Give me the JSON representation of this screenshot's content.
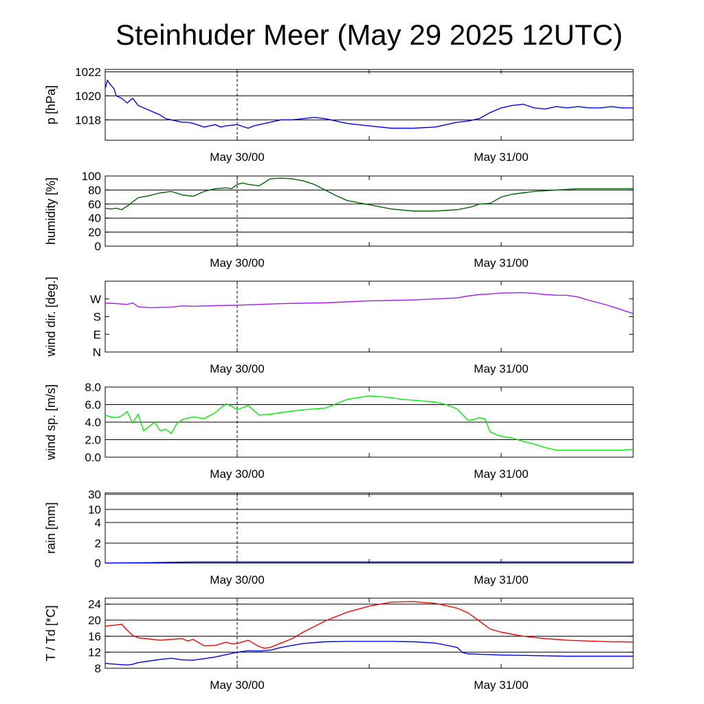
{
  "title": "Steinhuder Meer (May 29 2025 12UTC)",
  "x_tick_labels": [
    "May 30/00",
    "May 31/00"
  ],
  "chart_data": [
    {
      "id": "pressure",
      "type": "line",
      "ylabel": "p [hPa]",
      "ticks": [
        {
          "v": 1018,
          "label": "1018"
        },
        {
          "v": 1020,
          "label": "1020"
        },
        {
          "v": 1022,
          "label": "1022"
        }
      ],
      "ylim": [
        1016.3,
        1022.2
      ],
      "grid_values": [
        1018,
        1020,
        1022
      ],
      "series": [
        {
          "color": "#0000ff",
          "x": [
            12.0,
            12.2,
            12.5,
            12.8,
            13.0,
            13.5,
            14.0,
            14.5,
            15.0,
            15.5,
            16.0,
            16.5,
            17.0,
            17.5,
            18.0,
            18.5,
            19.0,
            19.5,
            20.0,
            21.0,
            22.0,
            22.5,
            23.0,
            24.0,
            25.0,
            25.5,
            26.0,
            27.0,
            28.0,
            29.0,
            30.0,
            31.0,
            32.0,
            33.0,
            34.0,
            36.0,
            38.0,
            40.0,
            42.0,
            44.0,
            45.0,
            46.0,
            47.0,
            48.0,
            49.0,
            50.0,
            51.0,
            52.0,
            53.0,
            54.0,
            55.0,
            56.0,
            57.0,
            58.0,
            59.0,
            60.0
          ],
          "y": [
            1020.6,
            1021.3,
            1020.9,
            1020.6,
            1020.0,
            1019.8,
            1019.4,
            1019.8,
            1019.2,
            1019.0,
            1018.8,
            1018.6,
            1018.4,
            1018.1,
            1018.0,
            1017.9,
            1017.8,
            1017.8,
            1017.7,
            1017.4,
            1017.6,
            1017.4,
            1017.5,
            1017.6,
            1017.3,
            1017.5,
            1017.6,
            1017.8,
            1018.0,
            1018.0,
            1018.1,
            1018.2,
            1018.1,
            1017.9,
            1017.7,
            1017.5,
            1017.3,
            1017.3,
            1017.4,
            1017.8,
            1017.9,
            1018.1,
            1018.6,
            1019.0,
            1019.2,
            1019.3,
            1019.0,
            1018.9,
            1019.1,
            1019.0,
            1019.1,
            1019.0,
            1019.0,
            1019.1,
            1019.0,
            1019.0
          ]
        }
      ]
    },
    {
      "id": "humidity",
      "type": "line",
      "ylabel": "humidity [%]",
      "ticks": [
        {
          "v": 0,
          "label": "0"
        },
        {
          "v": 20,
          "label": "20"
        },
        {
          "v": 40,
          "label": "40"
        },
        {
          "v": 60,
          "label": "60"
        },
        {
          "v": 80,
          "label": "80"
        },
        {
          "v": 100,
          "label": "100"
        }
      ],
      "ylim": [
        0,
        100
      ],
      "grid_values": [
        20,
        40,
        60,
        80
      ],
      "series": [
        {
          "color": "#006400",
          "x": [
            12.0,
            12.5,
            13.0,
            13.5,
            14.0,
            14.5,
            15.0,
            16.0,
            17.0,
            18.0,
            19.0,
            20.0,
            21.0,
            22.0,
            23.0,
            23.5,
            24.0,
            24.5,
            25.0,
            26.0,
            27.0,
            28.0,
            29.0,
            30.0,
            31.0,
            32.0,
            33.0,
            34.0,
            36.0,
            38.0,
            40.0,
            42.0,
            44.0,
            45.0,
            45.5,
            46.0,
            47.0,
            48.0,
            49.0,
            50.0,
            51.0,
            52.0,
            53.0,
            54.0,
            55.0,
            56.0,
            57.0,
            58.0,
            59.0,
            60.0
          ],
          "y": [
            54,
            53,
            54,
            52,
            57,
            63,
            69,
            72,
            76,
            78,
            73,
            71,
            78,
            82,
            83,
            82,
            88,
            90,
            88,
            86,
            96,
            97,
            96,
            93,
            88,
            80,
            72,
            65,
            59,
            53,
            50,
            50,
            52,
            55,
            57,
            60,
            61,
            70,
            74,
            76,
            78,
            79,
            80,
            81,
            82,
            82,
            82,
            82,
            82,
            82
          ]
        }
      ]
    },
    {
      "id": "wind_dir",
      "type": "line",
      "ylabel": "wind dir. [deg.]",
      "ticks": [
        {
          "v": 0,
          "label": "N"
        },
        {
          "v": 90,
          "label": "E"
        },
        {
          "v": 180,
          "label": "S"
        },
        {
          "v": 270,
          "label": "W"
        }
      ],
      "ylim": [
        0,
        360
      ],
      "grid_values": [],
      "series": [
        {
          "color": "#a020f0",
          "x": [
            12.0,
            12.5,
            13.0,
            14.0,
            14.5,
            15.0,
            16.0,
            18.0,
            19.0,
            20.0,
            22.0,
            24.0,
            26.0,
            28.0,
            30.0,
            32.0,
            34.0,
            36.0,
            38.0,
            40.0,
            42.0,
            44.0,
            45.0,
            46.0,
            47.0,
            48.0,
            49.0,
            50.0,
            51.0,
            52.0,
            53.0,
            54.0,
            55.0,
            56.0,
            57.0,
            58.0,
            59.0,
            60.0
          ],
          "y": [
            248,
            248,
            246,
            242,
            250,
            230,
            225,
            228,
            235,
            232,
            236,
            238,
            242,
            246,
            248,
            250,
            255,
            260,
            262,
            265,
            270,
            275,
            285,
            292,
            295,
            300,
            301,
            302,
            298,
            292,
            289,
            288,
            280,
            262,
            248,
            232,
            214,
            195
          ]
        }
      ]
    },
    {
      "id": "wind_speed",
      "type": "line",
      "ylabel": "wind sp. [m/s]",
      "ticks": [
        {
          "v": 0,
          "label": "0.0"
        },
        {
          "v": 2,
          "label": "2.0"
        },
        {
          "v": 4,
          "label": "4.0"
        },
        {
          "v": 6,
          "label": "6.0"
        },
        {
          "v": 8,
          "label": "8.0"
        }
      ],
      "ylim": [
        0,
        8
      ],
      "grid_values": [
        2,
        4,
        6
      ],
      "series": [
        {
          "color": "#00ee00",
          "x": [
            12.0,
            12.5,
            13.0,
            13.5,
            14.0,
            14.5,
            15.0,
            15.5,
            16.0,
            16.5,
            17.0,
            17.5,
            18.0,
            18.5,
            19.0,
            20.0,
            21.0,
            22.0,
            23.0,
            23.5,
            24.0,
            25.0,
            26.0,
            27.0,
            28.0,
            30.0,
            32.0,
            34.0,
            36.0,
            38.0,
            39.0,
            40.0,
            41.0,
            42.0,
            43.0,
            44.0,
            45.0,
            45.5,
            46.0,
            46.5,
            47.0,
            47.5,
            48.0,
            49.0,
            50.0,
            51.0,
            52.0,
            53.0,
            54.0,
            55.0,
            56.0,
            57.0,
            58.0,
            59.0,
            60.0
          ],
          "y": [
            4.8,
            4.6,
            4.5,
            4.7,
            5.2,
            3.9,
            4.9,
            3.0,
            3.5,
            4.0,
            3.0,
            3.2,
            2.7,
            3.8,
            4.3,
            4.6,
            4.4,
            5.1,
            6.1,
            5.8,
            5.4,
            5.9,
            4.8,
            4.9,
            5.1,
            5.4,
            5.6,
            6.6,
            7.0,
            6.8,
            6.6,
            6.5,
            6.4,
            6.3,
            6.0,
            5.5,
            4.2,
            4.3,
            4.5,
            4.4,
            2.9,
            2.6,
            2.4,
            2.2,
            1.8,
            1.5,
            1.1,
            0.8,
            0.8,
            0.8,
            0.8,
            0.8,
            0.8,
            0.8,
            0.9
          ]
        }
      ]
    },
    {
      "id": "rain",
      "type": "line",
      "ylabel": "rain [mm]",
      "ticks": [
        {
          "v": 0,
          "label": "0"
        },
        {
          "v": 2,
          "label": "2"
        },
        {
          "v": 4,
          "label": "4"
        },
        {
          "v": 10,
          "label": "10"
        },
        {
          "v": 30,
          "label": "30"
        }
      ],
      "scale": "custom",
      "grid_values": [
        2,
        4,
        10,
        30
      ],
      "series": [
        {
          "color": "#0000ff",
          "x": [
            12,
            16,
            20,
            24,
            60
          ],
          "y": [
            0,
            0.05,
            0.1,
            0.1,
            0.1
          ]
        }
      ]
    },
    {
      "id": "temperature",
      "type": "line",
      "ylabel": "T / Td [*C]",
      "ticks": [
        {
          "v": 8,
          "label": "8"
        },
        {
          "v": 12,
          "label": "12"
        },
        {
          "v": 16,
          "label": "16"
        },
        {
          "v": 20,
          "label": "20"
        },
        {
          "v": 24,
          "label": "24"
        }
      ],
      "ylim": [
        8,
        25.5
      ],
      "grid_values": [
        12,
        16,
        20,
        24
      ],
      "series": [
        {
          "color": "#ff0000",
          "x": [
            12.0,
            13.0,
            13.5,
            14.0,
            14.5,
            15.0,
            16.0,
            17.0,
            18.0,
            19.0,
            19.5,
            20.0,
            21.0,
            22.0,
            23.0,
            23.5,
            24.0,
            25.0,
            26.0,
            26.5,
            27.0,
            28.0,
            29.0,
            30.0,
            32.0,
            34.0,
            36.0,
            38.0,
            40.0,
            42.0,
            44.0,
            45.0,
            46.0,
            47.0,
            48.0,
            49.0,
            50.0,
            51.0,
            52.0,
            53.0,
            54.0,
            55.0,
            56.0,
            57.0,
            58.0,
            59.0,
            60.0
          ],
          "y": [
            18.5,
            18.8,
            19.0,
            17.5,
            16.2,
            15.6,
            15.3,
            15.0,
            15.2,
            15.4,
            14.8,
            15.2,
            13.6,
            13.7,
            14.5,
            14.1,
            14.2,
            15.0,
            13.4,
            13.0,
            13.2,
            14.3,
            15.4,
            17.0,
            19.8,
            22.0,
            23.5,
            24.5,
            24.6,
            24.2,
            23.0,
            21.8,
            19.8,
            17.8,
            17.0,
            16.5,
            16.0,
            15.7,
            15.4,
            15.2,
            15.0,
            14.9,
            14.8,
            14.7,
            14.6,
            14.6,
            14.5
          ]
        },
        {
          "color": "#0000ff",
          "x": [
            12.0,
            13.0,
            14.0,
            14.5,
            15.0,
            16.0,
            17.0,
            18.0,
            19.0,
            20.0,
            22.0,
            24.0,
            25.0,
            26.0,
            27.0,
            28.0,
            30.0,
            32.0,
            34.0,
            36.0,
            38.0,
            40.0,
            42.0,
            44.0,
            44.5,
            45.0,
            46.0,
            47.0,
            48.0,
            50.0,
            52.0,
            54.0,
            56.0,
            58.0,
            60.0
          ],
          "y": [
            9.2,
            9.0,
            8.8,
            9.0,
            9.4,
            9.8,
            10.2,
            10.5,
            10.1,
            10.0,
            10.8,
            12.0,
            12.4,
            12.3,
            12.5,
            13.2,
            14.2,
            14.6,
            14.7,
            14.7,
            14.7,
            14.6,
            14.3,
            13.2,
            11.9,
            11.6,
            11.5,
            11.4,
            11.3,
            11.2,
            11.1,
            11.0,
            11.0,
            11.0,
            11.0
          ]
        }
      ]
    }
  ]
}
